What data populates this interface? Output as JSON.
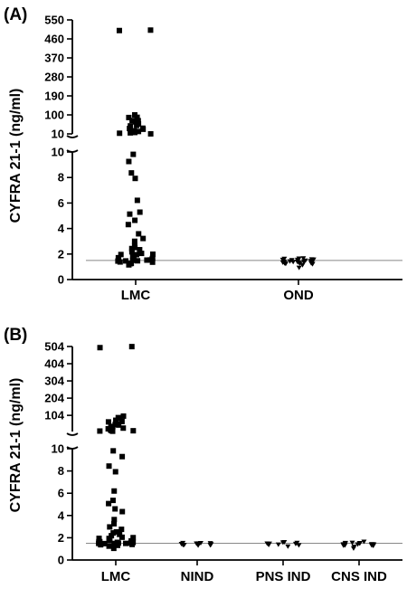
{
  "chart_data": [
    {
      "type": "scatter",
      "panel_label": "(A)",
      "ylabel": "CYFRA 21-1 (ng/ml)",
      "y_axis_broken": true,
      "ylim_lower": [
        0,
        10
      ],
      "ylim_upper": [
        10,
        550
      ],
      "y_ticks_lower": [
        0,
        2,
        4,
        6,
        8,
        10
      ],
      "y_ticks_upper": [
        10,
        100,
        190,
        280,
        370,
        460,
        550
      ],
      "cutoff_line": 1.5,
      "categories": [
        "LMC",
        "OND"
      ],
      "series": [
        {
          "category": "LMC",
          "values": [
            500,
            500,
            100,
            90,
            88,
            75,
            70,
            65,
            55,
            50,
            45,
            40,
            35,
            30,
            25,
            20,
            18,
            15,
            12,
            12,
            9.8,
            9.3,
            8.4,
            7.9,
            6.2,
            5.3,
            5.1,
            4.6,
            4.3,
            3.6,
            3.2,
            3.0,
            2.7,
            2.5,
            2.4,
            2.3,
            2.2,
            2.1,
            2.0,
            2.0,
            1.9,
            1.8,
            1.7,
            1.7,
            1.6,
            1.6,
            1.6,
            1.5,
            1.5,
            1.5,
            1.5,
            1.5,
            1.5,
            1.4,
            1.4,
            1.3,
            1.2,
            1.1
          ]
        },
        {
          "category": "OND",
          "values": [
            1.7,
            1.65,
            1.6,
            1.6,
            1.55,
            1.55,
            1.55,
            1.5,
            1.5,
            1.5,
            1.5,
            1.5,
            1.45,
            1.45,
            1.45,
            1.45,
            1.4,
            1.4,
            1.4,
            1.4,
            1.4,
            1.35,
            1.35,
            1.35,
            1.3,
            1.3,
            1.3,
            1.25,
            1.25,
            1.2,
            1.0
          ]
        }
      ]
    },
    {
      "type": "scatter",
      "panel_label": "(B)",
      "ylabel": "CYFRA 21-1 (ng/ml)",
      "y_axis_broken": true,
      "ylim_lower": [
        0,
        10
      ],
      "ylim_upper": [
        10,
        504
      ],
      "y_ticks_lower": [
        0,
        2,
        4,
        6,
        8,
        10
      ],
      "y_ticks_upper": [
        104,
        204,
        304,
        404,
        504
      ],
      "cutoff_line": 1.5,
      "categories": [
        "LMC",
        "NIND",
        "PNS IND",
        "CNS IND"
      ],
      "series": [
        {
          "category": "LMC",
          "values": [
            500,
            500,
            100,
            90,
            88,
            75,
            70,
            65,
            55,
            50,
            45,
            40,
            35,
            30,
            25,
            20,
            18,
            15,
            12,
            12,
            9.8,
            9.3,
            8.4,
            7.9,
            6.2,
            5.3,
            5.1,
            4.6,
            4.3,
            3.6,
            3.2,
            3.0,
            2.7,
            2.5,
            2.4,
            2.3,
            2.2,
            2.1,
            2.0,
            2.0,
            1.9,
            1.8,
            1.7,
            1.7,
            1.6,
            1.6,
            1.6,
            1.5,
            1.5,
            1.5,
            1.5,
            1.5,
            1.5,
            1.4,
            1.4,
            1.3,
            1.2,
            1.1
          ]
        },
        {
          "category": "NIND",
          "values": [
            1.6,
            1.55,
            1.5,
            1.5,
            1.5,
            1.45,
            1.45,
            1.4,
            1.4,
            1.4,
            1.35,
            1.35,
            1.3
          ]
        },
        {
          "category": "PNS IND",
          "values": [
            1.65,
            1.55,
            1.5,
            1.5,
            1.45,
            1.45,
            1.4,
            1.4,
            1.35,
            1.3
          ]
        },
        {
          "category": "CNS IND",
          "values": [
            1.7,
            1.6,
            1.55,
            1.5,
            1.5,
            1.5,
            1.45,
            1.45,
            1.4,
            1.4,
            1.4,
            1.35,
            1.35,
            1.3,
            1.3,
            1.2,
            1.05
          ]
        }
      ]
    }
  ]
}
